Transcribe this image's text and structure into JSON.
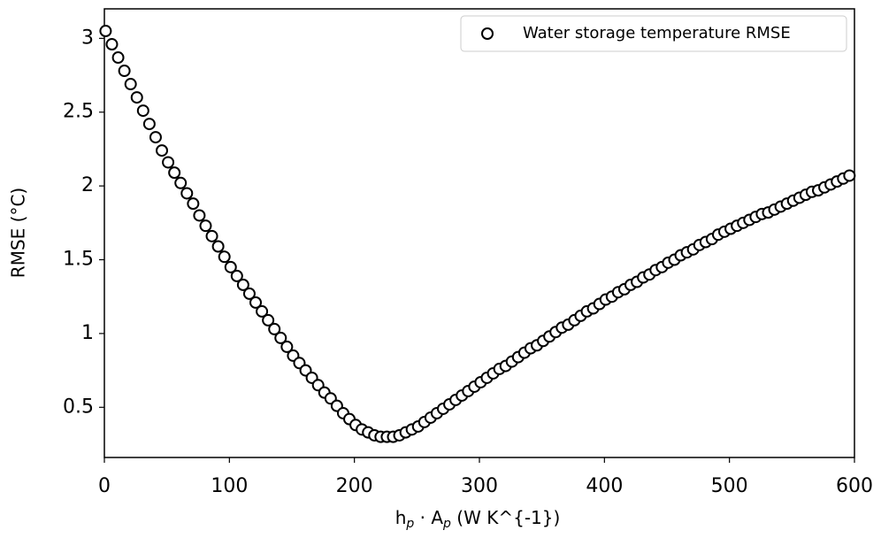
{
  "chart_data": {
    "type": "scatter",
    "x_label_parts": [
      "h",
      "p",
      " · A",
      "p",
      " (W K^{-1})"
    ],
    "y_label": "RMSE (°C)",
    "legend": "upper right",
    "series": [
      {
        "name": "Water storage temperature RMSE",
        "color": "#000000",
        "fill": "#ffffff",
        "x": [
          1,
          6,
          11,
          16,
          21,
          26,
          31,
          36,
          41,
          46,
          51,
          56,
          61,
          66,
          71,
          76,
          81,
          86,
          91,
          96,
          101,
          106,
          111,
          116,
          121,
          126,
          131,
          136,
          141,
          146,
          151,
          156,
          161,
          166,
          171,
          176,
          181,
          186,
          191,
          196,
          201,
          206,
          211,
          216,
          221,
          226,
          231,
          236,
          241,
          246,
          251,
          256,
          261,
          266,
          271,
          276,
          281,
          286,
          291,
          296,
          301,
          306,
          311,
          316,
          321,
          326,
          331,
          336,
          341,
          346,
          351,
          356,
          361,
          366,
          371,
          376,
          381,
          386,
          391,
          396,
          401,
          406,
          411,
          416,
          421,
          426,
          431,
          436,
          441,
          446,
          451,
          456,
          461,
          466,
          471,
          476,
          481,
          486,
          491,
          496,
          501,
          506,
          511,
          516,
          521,
          526,
          531,
          536,
          541,
          546,
          551,
          556,
          561,
          566,
          571,
          576,
          581,
          586,
          591,
          596
        ],
        "values": [
          3.05,
          2.96,
          2.87,
          2.78,
          2.69,
          2.6,
          2.51,
          2.42,
          2.33,
          2.24,
          2.16,
          2.09,
          2.02,
          1.95,
          1.88,
          1.8,
          1.73,
          1.66,
          1.59,
          1.52,
          1.45,
          1.39,
          1.33,
          1.27,
          1.21,
          1.15,
          1.09,
          1.03,
          0.97,
          0.91,
          0.85,
          0.8,
          0.75,
          0.7,
          0.65,
          0.6,
          0.56,
          0.51,
          0.46,
          0.42,
          0.38,
          0.35,
          0.33,
          0.31,
          0.3,
          0.3,
          0.3,
          0.31,
          0.33,
          0.35,
          0.37,
          0.4,
          0.43,
          0.46,
          0.49,
          0.52,
          0.55,
          0.58,
          0.61,
          0.64,
          0.67,
          0.7,
          0.73,
          0.76,
          0.78,
          0.81,
          0.84,
          0.87,
          0.9,
          0.92,
          0.95,
          0.98,
          1.01,
          1.04,
          1.06,
          1.09,
          1.12,
          1.15,
          1.17,
          1.2,
          1.23,
          1.25,
          1.28,
          1.3,
          1.33,
          1.35,
          1.38,
          1.4,
          1.43,
          1.45,
          1.48,
          1.5,
          1.53,
          1.55,
          1.57,
          1.6,
          1.62,
          1.64,
          1.67,
          1.69,
          1.71,
          1.73,
          1.75,
          1.77,
          1.79,
          1.81,
          1.82,
          1.84,
          1.86,
          1.88,
          1.9,
          1.92,
          1.94,
          1.96,
          1.97,
          1.99,
          2.01,
          2.03,
          2.05,
          2.07
        ]
      }
    ],
    "xlim": [
      0,
      600
    ],
    "xticks": [
      0,
      100,
      200,
      300,
      400,
      500,
      600
    ],
    "ylim": [
      0.16,
      3.2
    ],
    "yticks": [
      0.5,
      1.0,
      1.5,
      2.0,
      2.5,
      3.0
    ]
  }
}
